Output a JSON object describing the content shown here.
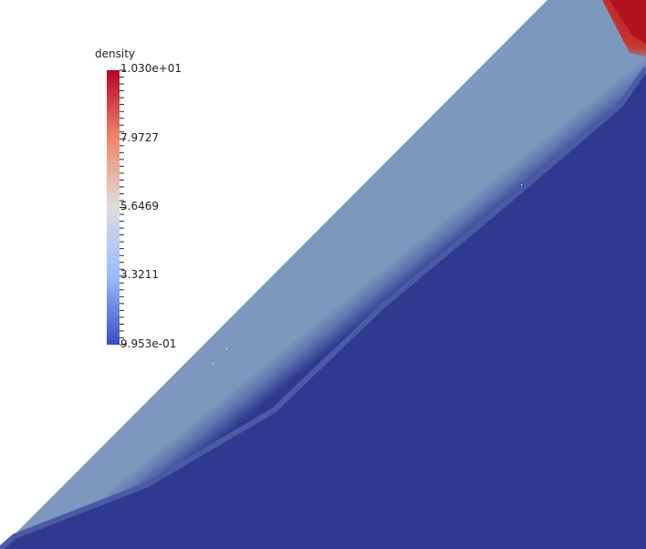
{
  "scalar_bar": {
    "title": "density",
    "labels": [
      "1.030e+01",
      "7.9727",
      "5.6469",
      "3.3211",
      "9.953e-01"
    ],
    "colors": [
      "#b40426",
      "#f08a6c",
      "#dddddd",
      "#9bbcff",
      "#3b4cc0"
    ]
  },
  "field_colors": {
    "background": "#ffffff",
    "preshock": "#2f3a8f",
    "postshock": "#7e97be",
    "reflected": "#b3121f"
  }
}
